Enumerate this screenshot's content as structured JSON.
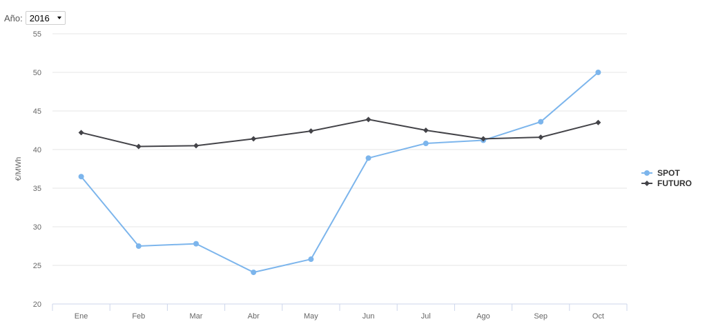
{
  "filter": {
    "year_label": "Año:",
    "year_value": "2016"
  },
  "chart_data": {
    "type": "line",
    "title": "",
    "xlabel": "",
    "ylabel": "€/MWh",
    "categories": [
      "Ene",
      "Feb",
      "Mar",
      "Abr",
      "May",
      "Jun",
      "Jul",
      "Ago",
      "Sep",
      "Oct"
    ],
    "ylim": [
      20,
      55
    ],
    "yticks": [
      "20",
      "25",
      "30",
      "35",
      "40",
      "45",
      "50",
      "55"
    ],
    "grid": true,
    "legend_position": "right",
    "series": [
      {
        "name": "SPOT",
        "color": "#7cb5ec",
        "marker": "circle",
        "values": [
          36.5,
          27.5,
          27.8,
          24.1,
          25.8,
          38.9,
          40.8,
          41.2,
          43.6,
          50.0
        ]
      },
      {
        "name": "FUTURO",
        "color": "#434348",
        "marker": "diamond",
        "values": [
          42.2,
          40.4,
          40.5,
          41.4,
          42.4,
          43.9,
          42.5,
          41.4,
          41.6,
          43.5
        ]
      }
    ]
  }
}
